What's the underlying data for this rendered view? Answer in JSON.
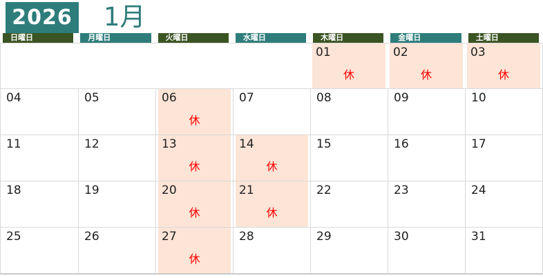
{
  "title": {
    "year": "2026",
    "month": "1月"
  },
  "colors": {
    "teal": "#2E7D7B",
    "olive_green": "#3B5423",
    "holiday_fill": "#FCE4D6",
    "holiday_text": "#FF0000",
    "grid_line": "#D9D9D9",
    "outer_line": "#C9C9C9",
    "date_text": "#1F1F1F"
  },
  "closed_label": "休",
  "day_headers": [
    {
      "key": "sun",
      "label": "日曜日",
      "tone": "green"
    },
    {
      "key": "mon",
      "label": "月曜日",
      "tone": "teal"
    },
    {
      "key": "tue",
      "label": "火曜日",
      "tone": "green"
    },
    {
      "key": "wed",
      "label": "水曜日",
      "tone": "teal"
    },
    {
      "key": "thu",
      "label": "木曜日",
      "tone": "green"
    },
    {
      "key": "fri",
      "label": "金曜日",
      "tone": "teal"
    },
    {
      "key": "sat",
      "label": "土曜日",
      "tone": "green"
    }
  ],
  "weeks": [
    [
      {
        "d": "",
        "closed": false
      },
      {
        "d": "",
        "closed": false
      },
      {
        "d": "",
        "closed": false
      },
      {
        "d": "",
        "closed": false
      },
      {
        "d": "01",
        "closed": true
      },
      {
        "d": "02",
        "closed": true
      },
      {
        "d": "03",
        "closed": true
      }
    ],
    [
      {
        "d": "04",
        "closed": false
      },
      {
        "d": "05",
        "closed": false
      },
      {
        "d": "06",
        "closed": true
      },
      {
        "d": "07",
        "closed": false
      },
      {
        "d": "08",
        "closed": false
      },
      {
        "d": "09",
        "closed": false
      },
      {
        "d": "10",
        "closed": false
      }
    ],
    [
      {
        "d": "11",
        "closed": false
      },
      {
        "d": "12",
        "closed": false
      },
      {
        "d": "13",
        "closed": true
      },
      {
        "d": "14",
        "closed": true
      },
      {
        "d": "15",
        "closed": false
      },
      {
        "d": "16",
        "closed": false
      },
      {
        "d": "17",
        "closed": false
      }
    ],
    [
      {
        "d": "18",
        "closed": false
      },
      {
        "d": "19",
        "closed": false
      },
      {
        "d": "20",
        "closed": true
      },
      {
        "d": "21",
        "closed": true
      },
      {
        "d": "22",
        "closed": false
      },
      {
        "d": "23",
        "closed": false
      },
      {
        "d": "24",
        "closed": false
      }
    ],
    [
      {
        "d": "25",
        "closed": false
      },
      {
        "d": "26",
        "closed": false
      },
      {
        "d": "27",
        "closed": true
      },
      {
        "d": "28",
        "closed": false
      },
      {
        "d": "29",
        "closed": false
      },
      {
        "d": "30",
        "closed": false
      },
      {
        "d": "31",
        "closed": false
      }
    ]
  ]
}
